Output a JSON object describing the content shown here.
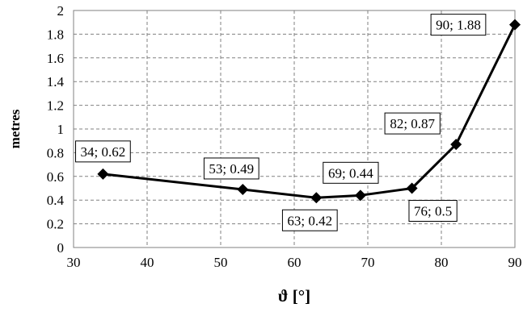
{
  "chart_data": {
    "type": "line",
    "title": "",
    "xlabel": "ϑ [°]",
    "ylabel": "metres",
    "xlim": [
      30,
      90
    ],
    "ylim": [
      0,
      2
    ],
    "x_ticks": [
      "30",
      "40",
      "50",
      "60",
      "70",
      "80",
      "90"
    ],
    "y_ticks": [
      "0",
      "0.2",
      "0.4",
      "0.6",
      "0.8",
      "1",
      "1.2",
      "1.4",
      "1.6",
      "1.8",
      "2"
    ],
    "grid": true,
    "legend": "none",
    "series": [
      {
        "color": "#000000",
        "marker": "diamond",
        "x": [
          34,
          53,
          63,
          69,
          76,
          82,
          90
        ],
        "y": [
          0.62,
          0.49,
          0.42,
          0.44,
          0.5,
          0.87,
          1.88
        ]
      }
    ],
    "data_labels": [
      "34; 0.62",
      "53; 0.49",
      "63; 0.42",
      "69; 0.44",
      "76; 0.5",
      "82; 0.87",
      "90; 1.88"
    ]
  }
}
